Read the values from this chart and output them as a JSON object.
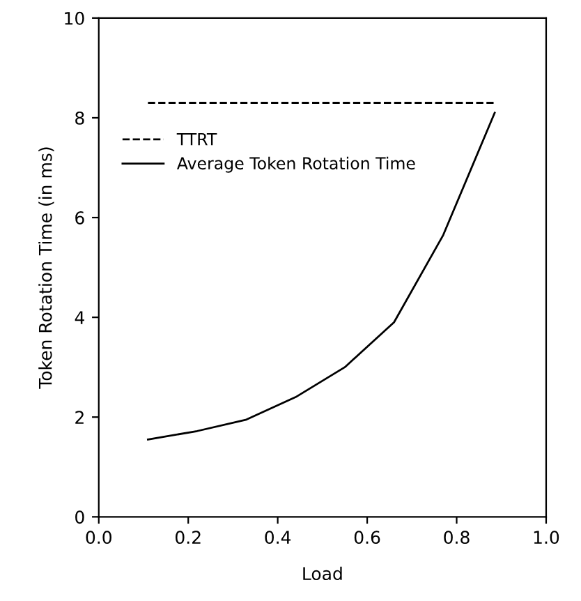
{
  "chart_data": {
    "type": "line",
    "xlabel": "Load",
    "ylabel": "Token Rotation Time (in ms)",
    "x": [
      0.11,
      0.22,
      0.33,
      0.44,
      0.55,
      0.66,
      0.77,
      0.885
    ],
    "series": [
      {
        "name": "TTRT",
        "color": "#000000",
        "line_style": "dashed",
        "values": [
          8.3,
          8.3,
          8.3,
          8.3,
          8.3,
          8.3,
          8.3,
          8.3
        ]
      },
      {
        "name": "Average Token Rotation Time",
        "color": "#000000",
        "line_style": "solid",
        "values": [
          1.55,
          1.72,
          1.95,
          2.4,
          3.0,
          3.9,
          5.65,
          8.1
        ]
      }
    ],
    "xlim": [
      0,
      1
    ],
    "ylim": [
      0,
      10
    ],
    "xticks": [
      {
        "value": 0,
        "label": "0.0"
      },
      {
        "value": 0.2,
        "label": "0.2"
      },
      {
        "value": 0.4,
        "label": "0.4"
      },
      {
        "value": 0.6,
        "label": "0.6"
      },
      {
        "value": 0.8,
        "label": "0.8"
      },
      {
        "value": 1,
        "label": "1.0"
      }
    ],
    "yticks": [
      0,
      2,
      4,
      6,
      8,
      10
    ],
    "grid": false,
    "legend": "top left",
    "marker": "none"
  }
}
